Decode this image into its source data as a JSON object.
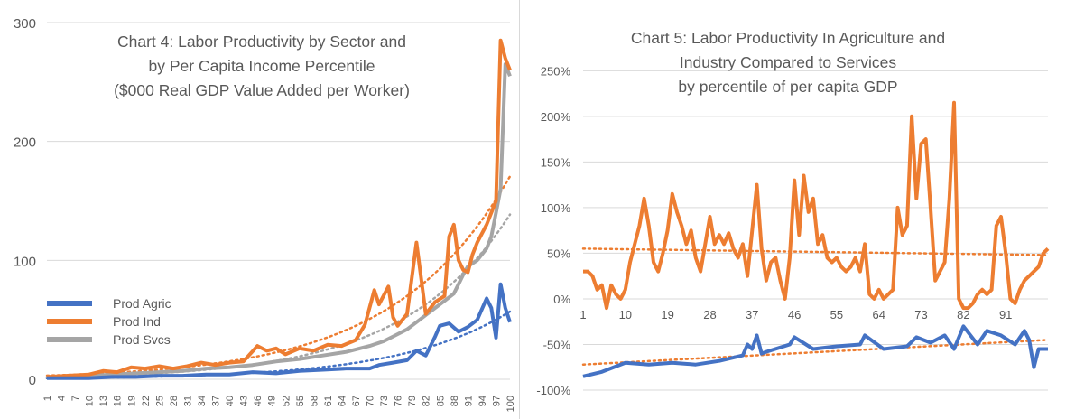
{
  "charts": [
    {
      "title_lines": [
        "Chart 4: Labor Productivity by Sector and",
        "by Per Capita Income Percentile",
        "($000 Real GDP Value Added per Worker)"
      ],
      "y_ticks": [
        "0",
        "100",
        "200",
        "300"
      ],
      "x_ticks": [
        "1",
        "4",
        "7",
        "10",
        "13",
        "16",
        "19",
        "22",
        "25",
        "28",
        "31",
        "34",
        "37",
        "40",
        "43",
        "46",
        "49",
        "52",
        "55",
        "58",
        "61",
        "64",
        "67",
        "70",
        "73",
        "76",
        "79",
        "82",
        "85",
        "88",
        "91",
        "94",
        "97",
        "100"
      ],
      "legend": [
        "Prod Agric",
        "Prod Ind",
        "Prod Svcs"
      ]
    },
    {
      "title_lines": [
        "Chart 5: Labor Productivity In Agriculture and",
        "Industry Compared to Services",
        "by percentile of per capita GDP"
      ],
      "y_ticks": [
        "-100%",
        "-50%",
        "0%",
        "50%",
        "100%",
        "150%",
        "200%",
        "250%"
      ],
      "x_ticks": [
        "1",
        "10",
        "19",
        "28",
        "37",
        "46",
        "55",
        "64",
        "73",
        "82",
        "91"
      ]
    }
  ],
  "chart_data": [
    {
      "type": "line",
      "title": "Chart 4: Labor Productivity by Sector and by Per Capita Income Percentile ($000 Real GDP Value Added per Worker)",
      "xlabel": "",
      "ylabel": "",
      "ylim": [
        0,
        300
      ],
      "xlim": [
        1,
        100
      ],
      "legend_position": "left-bottom",
      "grid": true,
      "colors": {
        "agric": "#4472C4",
        "ind": "#ED7D31",
        "svcs": "#A5A5A5"
      },
      "series": [
        {
          "name": "Prod Agric",
          "points": [
            [
              1,
              1
            ],
            [
              5,
              1
            ],
            [
              10,
              1
            ],
            [
              15,
              2
            ],
            [
              20,
              2
            ],
            [
              25,
              3
            ],
            [
              30,
              3
            ],
            [
              35,
              4
            ],
            [
              40,
              4
            ],
            [
              45,
              6
            ],
            [
              50,
              5
            ],
            [
              55,
              7
            ],
            [
              60,
              8
            ],
            [
              65,
              9
            ],
            [
              70,
              9
            ],
            [
              72,
              12
            ],
            [
              75,
              14
            ],
            [
              78,
              16
            ],
            [
              80,
              24
            ],
            [
              82,
              20
            ],
            [
              84,
              36
            ],
            [
              85,
              45
            ],
            [
              87,
              47
            ],
            [
              89,
              40
            ],
            [
              91,
              44
            ],
            [
              93,
              50
            ],
            [
              95,
              68
            ],
            [
              96,
              60
            ],
            [
              97,
              35
            ],
            [
              98,
              80
            ],
            [
              99,
              60
            ],
            [
              100,
              48
            ]
          ]
        },
        {
          "name": "Prod Ind",
          "points": [
            [
              1,
              2
            ],
            [
              5,
              3
            ],
            [
              10,
              4
            ],
            [
              13,
              7
            ],
            [
              16,
              6
            ],
            [
              19,
              10
            ],
            [
              22,
              9
            ],
            [
              25,
              11
            ],
            [
              28,
              9
            ],
            [
              31,
              11
            ],
            [
              34,
              14
            ],
            [
              37,
              12
            ],
            [
              40,
              14
            ],
            [
              43,
              15
            ],
            [
              46,
              28
            ],
            [
              48,
              24
            ],
            [
              50,
              26
            ],
            [
              52,
              21
            ],
            [
              55,
              26
            ],
            [
              58,
              24
            ],
            [
              61,
              29
            ],
            [
              64,
              28
            ],
            [
              67,
              33
            ],
            [
              69,
              46
            ],
            [
              71,
              75
            ],
            [
              72,
              63
            ],
            [
              74,
              78
            ],
            [
              75,
              52
            ],
            [
              76,
              45
            ],
            [
              78,
              55
            ],
            [
              80,
              115
            ],
            [
              82,
              55
            ],
            [
              84,
              65
            ],
            [
              86,
              70
            ],
            [
              87,
              120
            ],
            [
              88,
              130
            ],
            [
              89,
              100
            ],
            [
              90,
              92
            ],
            [
              91,
              90
            ],
            [
              92,
              105
            ],
            [
              93,
              115
            ],
            [
              95,
              130
            ],
            [
              97,
              150
            ],
            [
              98,
              285
            ],
            [
              99,
              270
            ],
            [
              100,
              260
            ]
          ]
        },
        {
          "name": "Prod Svcs",
          "points": [
            [
              1,
              2
            ],
            [
              5,
              2
            ],
            [
              10,
              3
            ],
            [
              15,
              4
            ],
            [
              20,
              5
            ],
            [
              25,
              6
            ],
            [
              30,
              7
            ],
            [
              35,
              9
            ],
            [
              40,
              10
            ],
            [
              45,
              12
            ],
            [
              50,
              15
            ],
            [
              55,
              17
            ],
            [
              60,
              20
            ],
            [
              65,
              23
            ],
            [
              70,
              28
            ],
            [
              73,
              32
            ],
            [
              75,
              36
            ],
            [
              78,
              42
            ],
            [
              80,
              48
            ],
            [
              82,
              54
            ],
            [
              84,
              60
            ],
            [
              86,
              66
            ],
            [
              88,
              72
            ],
            [
              89,
              80
            ],
            [
              90,
              88
            ],
            [
              91,
              95
            ],
            [
              93,
              100
            ],
            [
              95,
              110
            ],
            [
              96,
              120
            ],
            [
              97,
              140
            ],
            [
              98,
              160
            ],
            [
              99,
              265
            ],
            [
              100,
              255
            ]
          ]
        }
      ],
      "trendlines": "dotted exponential fits for each series"
    },
    {
      "type": "line",
      "title": "Chart 5: Labor Productivity In Agriculture and Industry Compared to Services by percentile of per capita GDP",
      "xlabel": "",
      "ylabel": "",
      "ylim": [
        -100,
        250
      ],
      "xlim": [
        1,
        100
      ],
      "grid": true,
      "colors": {
        "agric": "#4472C4",
        "ind": "#ED7D31",
        "trend": "#ED7D31"
      },
      "series": [
        {
          "name": "",
          "color": "#ED7D31",
          "points": [
            [
              1,
              30
            ],
            [
              2,
              30
            ],
            [
              3,
              25
            ],
            [
              4,
              10
            ],
            [
              5,
              15
            ],
            [
              6,
              -10
            ],
            [
              7,
              15
            ],
            [
              8,
              5
            ],
            [
              9,
              0
            ],
            [
              10,
              10
            ],
            [
              11,
              40
            ],
            [
              12,
              60
            ],
            [
              13,
              80
            ],
            [
              14,
              110
            ],
            [
              15,
              80
            ],
            [
              16,
              40
            ],
            [
              17,
              30
            ],
            [
              18,
              50
            ],
            [
              19,
              75
            ],
            [
              20,
              115
            ],
            [
              21,
              95
            ],
            [
              22,
              80
            ],
            [
              23,
              60
            ],
            [
              24,
              75
            ],
            [
              25,
              45
            ],
            [
              26,
              30
            ],
            [
              27,
              60
            ],
            [
              28,
              90
            ],
            [
              29,
              60
            ],
            [
              30,
              70
            ],
            [
              31,
              60
            ],
            [
              32,
              72
            ],
            [
              33,
              55
            ],
            [
              34,
              45
            ],
            [
              35,
              60
            ],
            [
              36,
              25
            ],
            [
              37,
              75
            ],
            [
              38,
              125
            ],
            [
              39,
              55
            ],
            [
              40,
              20
            ],
            [
              41,
              40
            ],
            [
              42,
              45
            ],
            [
              43,
              20
            ],
            [
              44,
              0
            ],
            [
              45,
              45
            ],
            [
              46,
              130
            ],
            [
              47,
              70
            ],
            [
              48,
              135
            ],
            [
              49,
              95
            ],
            [
              50,
              110
            ],
            [
              51,
              60
            ],
            [
              52,
              70
            ],
            [
              53,
              45
            ],
            [
              54,
              40
            ],
            [
              55,
              45
            ],
            [
              56,
              35
            ],
            [
              57,
              30
            ],
            [
              58,
              35
            ],
            [
              59,
              45
            ],
            [
              60,
              30
            ],
            [
              61,
              60
            ],
            [
              62,
              5
            ],
            [
              63,
              0
            ],
            [
              64,
              10
            ],
            [
              65,
              0
            ],
            [
              66,
              5
            ],
            [
              67,
              10
            ],
            [
              68,
              100
            ],
            [
              69,
              70
            ],
            [
              70,
              80
            ],
            [
              71,
              200
            ],
            [
              72,
              110
            ],
            [
              73,
              170
            ],
            [
              74,
              175
            ],
            [
              75,
              100
            ],
            [
              76,
              20
            ],
            [
              77,
              30
            ],
            [
              78,
              40
            ],
            [
              79,
              110
            ],
            [
              80,
              215
            ],
            [
              81,
              0
            ],
            [
              82,
              -10
            ],
            [
              83,
              -10
            ],
            [
              84,
              -5
            ],
            [
              85,
              5
            ],
            [
              86,
              10
            ],
            [
              87,
              5
            ],
            [
              88,
              10
            ],
            [
              89,
              80
            ],
            [
              90,
              90
            ],
            [
              91,
              50
            ],
            [
              92,
              0
            ],
            [
              93,
              -5
            ],
            [
              94,
              10
            ],
            [
              95,
              20
            ],
            [
              96,
              25
            ],
            [
              97,
              30
            ],
            [
              98,
              35
            ],
            [
              99,
              50
            ],
            [
              100,
              55
            ]
          ]
        },
        {
          "name": "",
          "color": "#4472C4",
          "points": [
            [
              1,
              -85
            ],
            [
              5,
              -80
            ],
            [
              10,
              -70
            ],
            [
              15,
              -72
            ],
            [
              20,
              -70
            ],
            [
              25,
              -72
            ],
            [
              30,
              -68
            ],
            [
              35,
              -62
            ],
            [
              36,
              -50
            ],
            [
              37,
              -55
            ],
            [
              38,
              -40
            ],
            [
              39,
              -60
            ],
            [
              40,
              -58
            ],
            [
              45,
              -50
            ],
            [
              46,
              -42
            ],
            [
              50,
              -55
            ],
            [
              55,
              -52
            ],
            [
              60,
              -50
            ],
            [
              61,
              -40
            ],
            [
              65,
              -55
            ],
            [
              70,
              -52
            ],
            [
              72,
              -42
            ],
            [
              75,
              -48
            ],
            [
              78,
              -40
            ],
            [
              80,
              -55
            ],
            [
              82,
              -30
            ],
            [
              85,
              -50
            ],
            [
              87,
              -35
            ],
            [
              90,
              -40
            ],
            [
              93,
              -50
            ],
            [
              95,
              -35
            ],
            [
              96,
              -45
            ],
            [
              97,
              -75
            ],
            [
              98,
              -55
            ],
            [
              100,
              -55
            ]
          ]
        }
      ],
      "trendlines": [
        {
          "start": [
            1,
            55
          ],
          "end": [
            100,
            48
          ],
          "color": "#ED7D31",
          "style": "dotted"
        },
        {
          "start": [
            1,
            -72
          ],
          "end": [
            100,
            -45
          ],
          "color": "#ED7D31",
          "style": "dotted"
        }
      ]
    }
  ]
}
